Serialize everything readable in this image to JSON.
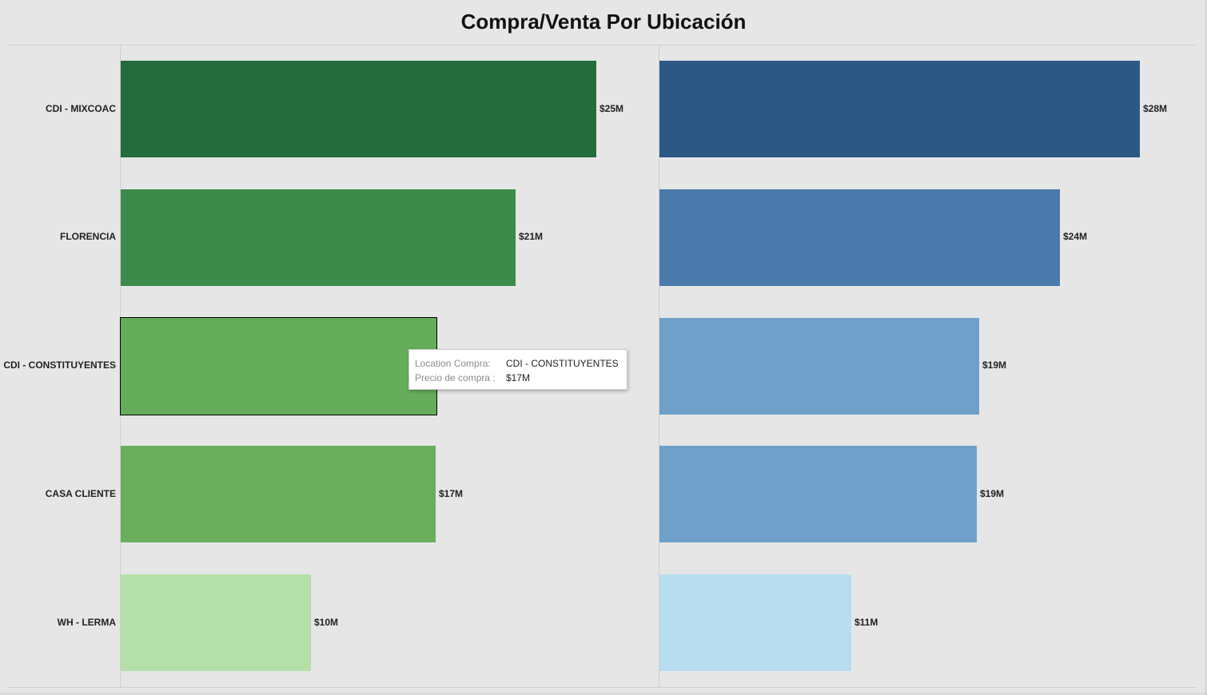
{
  "title": "Compra/Venta Por Ubicación",
  "chart_data": [
    {
      "type": "bar",
      "orientation": "horizontal",
      "categories": [
        "CDI - MIXCOAC",
        "FLORENCIA",
        "CDI - CONSTITUYENTES",
        "CASA CLIENTE",
        "WH - LERMA"
      ],
      "values": [
        25.3,
        21.0,
        16.8,
        16.75,
        10.1
      ],
      "labels": [
        "$25M",
        "$21M",
        "$17M",
        "$17M",
        "$10M"
      ],
      "colors": [
        "#246b3d",
        "#3d8b4a",
        "#66ad5b",
        "#68ae5c",
        "#b4dfa8"
      ],
      "unit": "$M",
      "xlim": [
        0,
        28.6
      ],
      "selected_index": 2
    },
    {
      "type": "bar",
      "orientation": "horizontal",
      "categories": [
        "CDI - MIXCOAC",
        "FLORENCIA",
        "CDI - CONSTITUYENTES",
        "CASA CLIENTE",
        "WH - LERMA"
      ],
      "values": [
        28.3,
        23.6,
        18.85,
        18.7,
        11.3
      ],
      "labels": [
        "$28M",
        "$24M",
        "$19M",
        "$19M",
        "$11M"
      ],
      "colors": [
        "#2c5885",
        "#4a7aab",
        "#6fa0c9",
        "#6fa0c9",
        "#b8dcf0"
      ],
      "unit": "$M",
      "xlim": [
        0,
        31.7
      ]
    }
  ],
  "tooltip": {
    "rows": [
      {
        "key": "Location Compra:",
        "value": "CDI - CONSTITUYENTES"
      },
      {
        "key": "Precio de compra :",
        "value": "$17M"
      }
    ]
  }
}
